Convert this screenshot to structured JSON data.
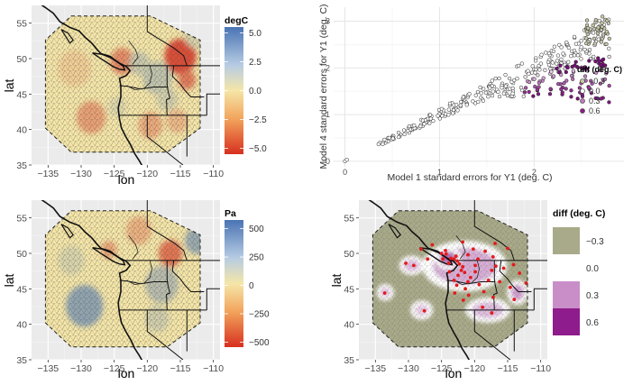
{
  "chart_data": [
    {
      "type": "heatmap",
      "panel": "top-left",
      "xlabel": "lon",
      "ylabel": "lat",
      "xticks": [
        -135,
        -130,
        -125,
        -120,
        -115,
        -110
      ],
      "xtick_labels": [
        "−135",
        "−130",
        "−125",
        "−120",
        "−115",
        "−110"
      ],
      "yticks": [
        35,
        40,
        45,
        50,
        55
      ],
      "xlim": [
        -137.5,
        -109
      ],
      "ylim": [
        35,
        57.5
      ],
      "legend_title": "degC",
      "legend_ticks": [
        5.0,
        2.5,
        0.0,
        -2.5,
        -5.0
      ],
      "legend_tick_labels": [
        "5.0",
        "2.5",
        "0.0",
        "−2.5",
        "−5.0"
      ],
      "range": [
        -5.5,
        5.5
      ],
      "colors": {
        "low": "#d7301f",
        "mid": "#f5e6a8",
        "high": "#4a74b4"
      },
      "blobs": [
        {
          "lon": -115,
          "lat": 50.3,
          "r": 2.4,
          "v": -5.0
        },
        {
          "lon": -123.8,
          "lat": 49.6,
          "r": 1.8,
          "v": -3.0
        },
        {
          "lon": -114,
          "lat": 47.0,
          "r": 1.3,
          "v": -3.5
        },
        {
          "lon": -128.5,
          "lat": 41.7,
          "r": 2.2,
          "v": -2.3
        },
        {
          "lon": -119.5,
          "lat": 40.6,
          "r": 1.8,
          "v": -2.0
        },
        {
          "lon": -115.5,
          "lat": 41.2,
          "r": 1.6,
          "v": -1.5
        },
        {
          "lon": -131,
          "lat": 48.6,
          "r": 2.5,
          "v": -0.8
        },
        {
          "lon": -118.5,
          "lat": 47.3,
          "r": 2.2,
          "v": 1.8
        },
        {
          "lon": -121.2,
          "lat": 49.3,
          "r": 1.6,
          "v": 1.5
        },
        {
          "lon": -117,
          "lat": 44.3,
          "r": 1.6,
          "v": 1.2
        },
        {
          "lon": -112.5,
          "lat": 53.5,
          "r": 2.0,
          "v": 1.0
        },
        {
          "lon": -124.5,
          "lat": 43.2,
          "r": 1.4,
          "v": 0.8
        }
      ]
    },
    {
      "type": "scatter",
      "panel": "top-right",
      "xlabel": "Model 1 standard errors for Y1 (deg. C)",
      "ylabel": "Model 4 standard errors for Y1 (deg. C)",
      "xticks": [
        0,
        1,
        2
      ],
      "yticks": [
        0,
        1,
        2,
        3
      ],
      "xlim": [
        -0.12,
        2.95
      ],
      "ylim": [
        -0.12,
        3.3
      ],
      "legend_title": "diff (deg. C)",
      "legend": [
        {
          "label": "−0.3",
          "color": "#c9c9ac"
        },
        {
          "label": "0.0",
          "color": "#ffffff"
        },
        {
          "label": "0.3",
          "color": "#c27bbd"
        },
        {
          "label": "0.6",
          "color": "#8e1c8c"
        }
      ],
      "sample_points": [
        [
          0.0,
          0.0,
          0.0
        ],
        [
          0.2,
          0.18,
          0.0
        ],
        [
          0.6,
          0.55,
          0.0
        ],
        [
          1.0,
          0.95,
          0.0
        ],
        [
          1.5,
          1.55,
          0.0
        ],
        [
          2.0,
          2.2,
          0.05
        ],
        [
          2.4,
          2.4,
          0.3
        ],
        [
          2.6,
          1.95,
          0.6
        ],
        [
          2.7,
          3.05,
          -0.3
        ],
        [
          2.75,
          2.9,
          -0.3
        ]
      ]
    },
    {
      "type": "heatmap",
      "panel": "bottom-left",
      "xlabel": "lon",
      "ylabel": "lat",
      "xticks": [
        -135,
        -130,
        -125,
        -120,
        -115,
        -110
      ],
      "xtick_labels": [
        "−135",
        "−130",
        "−125",
        "−120",
        "−115",
        "−110"
      ],
      "yticks": [
        35,
        40,
        45,
        50,
        55
      ],
      "xlim": [
        -137.5,
        -109
      ],
      "ylim": [
        35,
        57.5
      ],
      "legend_title": "Pa",
      "legend_ticks": [
        500,
        250,
        0,
        -250,
        -500
      ],
      "legend_tick_labels": [
        "500",
        "250",
        "0",
        "−250",
        "−500"
      ],
      "range": [
        -560,
        560
      ],
      "colors": {
        "low": "#d7301f",
        "mid": "#f5e6a8",
        "high": "#4a74b4"
      },
      "blobs": [
        {
          "lon": -116.5,
          "lat": 50.0,
          "r": 1.8,
          "v": -380
        },
        {
          "lon": -121.3,
          "lat": 53.2,
          "r": 1.9,
          "v": -180
        },
        {
          "lon": -125.8,
          "lat": 50.5,
          "r": 1.2,
          "v": -220
        },
        {
          "lon": -112.5,
          "lat": 51.8,
          "r": 1.8,
          "v": 320
        },
        {
          "lon": -129.5,
          "lat": 42.6,
          "r": 2.8,
          "v": 360
        },
        {
          "lon": -117.8,
          "lat": 45.6,
          "r": 2.5,
          "v": 220
        },
        {
          "lon": -118.5,
          "lat": 40.8,
          "r": 1.8,
          "v": 130
        },
        {
          "lon": -131.5,
          "lat": 49.0,
          "r": 2.0,
          "v": 100
        }
      ]
    },
    {
      "type": "heatmap",
      "panel": "bottom-right",
      "xlabel": "lon",
      "ylabel": "lat",
      "xticks": [
        -135,
        -130,
        -125,
        -120,
        -115,
        -110
      ],
      "xtick_labels": [
        "−135",
        "−130",
        "−125",
        "−120",
        "−115",
        "−110"
      ],
      "yticks": [
        35,
        40,
        45,
        50,
        55
      ],
      "xlim": [
        -137.5,
        -109
      ],
      "ylim": [
        35,
        57.5
      ],
      "legend_title": "diff (deg. C)",
      "legend": [
        {
          "label": "−0.3",
          "color": "#a9aa89"
        },
        {
          "label": "0.0",
          "color": "#ffffff"
        },
        {
          "label": "0.3",
          "color": "#c98ec8"
        },
        {
          "label": "0.6",
          "color": "#8e1c8c"
        }
      ],
      "base_color": "#a9aa89",
      "regions": [
        {
          "lon": -121.5,
          "lat": 48.2,
          "rx": 6.0,
          "ry": 3.2,
          "v": 0.25
        },
        {
          "lon": -129.5,
          "lat": 48.3,
          "rx": 1.5,
          "ry": 1.0,
          "v": 0.2
        },
        {
          "lon": -133.5,
          "lat": 44.5,
          "rx": 0.9,
          "ry": 0.8,
          "v": 0.2
        },
        {
          "lon": -128.0,
          "lat": 42.0,
          "rx": 1.3,
          "ry": 1.0,
          "v": 0.15
        },
        {
          "lon": -118.0,
          "lat": 42.0,
          "rx": 3.0,
          "ry": 1.4,
          "v": 0.2
        },
        {
          "lon": -124.0,
          "lat": 49.3,
          "rx": 1.6,
          "ry": 1.2,
          "v": 0.45
        },
        {
          "lon": -113.5,
          "lat": 44.5,
          "rx": 1.2,
          "ry": 1.4,
          "v": 0.3
        }
      ],
      "stations": [
        [
          -124.3,
          49.9
        ],
        [
          -123.6,
          49.3
        ],
        [
          -123.1,
          49.2
        ],
        [
          -122.6,
          48.9
        ],
        [
          -122.3,
          48.5
        ],
        [
          -121.8,
          48.1
        ],
        [
          -122.0,
          47.6
        ],
        [
          -121.5,
          47.3
        ],
        [
          -122.8,
          49.6
        ],
        [
          -123.9,
          48.6
        ],
        [
          -124.4,
          50.4
        ],
        [
          -125.0,
          50.0
        ],
        [
          -124.8,
          49.2
        ],
        [
          -121.0,
          49.8
        ],
        [
          -120.2,
          50.6
        ],
        [
          -119.5,
          49.2
        ],
        [
          -118.4,
          50.3
        ],
        [
          -117.2,
          49.5
        ],
        [
          -116.8,
          48.2
        ],
        [
          -117.4,
          47.6
        ],
        [
          -119.9,
          47.4
        ],
        [
          -120.6,
          46.6
        ],
        [
          -122.5,
          46.9
        ],
        [
          -123.1,
          46.2
        ],
        [
          -122.7,
          45.5
        ],
        [
          -121.4,
          45.0
        ],
        [
          -119.3,
          45.6
        ],
        [
          -117.9,
          46.2
        ],
        [
          -115.6,
          47.9
        ],
        [
          -114.1,
          48.4
        ],
        [
          -113.2,
          47.2
        ],
        [
          -116.2,
          46.0
        ],
        [
          -118.6,
          44.6
        ],
        [
          -120.9,
          44.1
        ],
        [
          -123.0,
          44.4
        ],
        [
          -121.7,
          43.4
        ],
        [
          -117.2,
          43.8
        ],
        [
          -114.6,
          45.2
        ],
        [
          -112.2,
          45.8
        ],
        [
          -115.0,
          50.7
        ],
        [
          -116.9,
          51.4
        ],
        [
          -121.8,
          51.6
        ],
        [
          -126.4,
          51.2
        ],
        [
          -128.1,
          50.6
        ],
        [
          -127.1,
          49.2
        ],
        [
          -129.2,
          48.3
        ],
        [
          -130.4,
          48.6
        ],
        [
          -133.6,
          44.4
        ],
        [
          -127.6,
          41.9
        ],
        [
          -117.4,
          41.6
        ],
        [
          -118.8,
          42.4
        ],
        [
          -114.0,
          43.5
        ],
        [
          -119.9,
          48.3
        ],
        [
          -121.0,
          46.0
        ],
        [
          -123.8,
          47.4
        ]
      ]
    }
  ]
}
